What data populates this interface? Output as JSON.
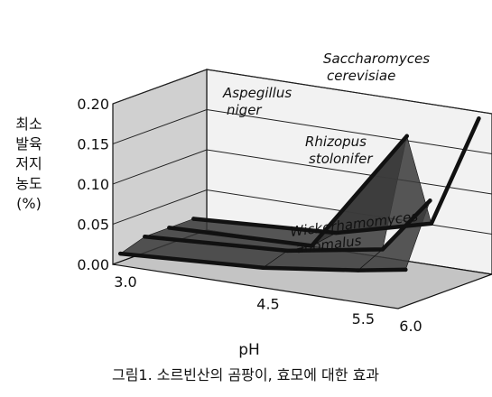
{
  "chart_data": {
    "type": "3d-surface",
    "title": "",
    "caption": "그림1. 소르빈산의 곰팡이, 효모에 대한 효과",
    "xlabel": "pH",
    "ylabel_lines": [
      "최소",
      "발육",
      "저지",
      "농도",
      "(%)"
    ],
    "x_ticks": [
      "3.0",
      "4.5",
      "5.5",
      "6.0"
    ],
    "y_ticks": [
      "0.20",
      "0.15",
      "0.10",
      "0.05",
      "0.00"
    ],
    "x": [
      3.0,
      4.5,
      5.5,
      6.0
    ],
    "ylim": [
      0,
      0.2
    ],
    "series": [
      {
        "name": "Wickerhamomyces anomalus",
        "label_lines": [
          "Wickerhamomyces",
          "anomalus"
        ],
        "values": [
          0.01,
          0.02,
          0.035,
          0.045
        ]
      },
      {
        "name": "Rhizopus stolonifer",
        "label_lines": [
          "Rhizopus",
          "stolonifer"
        ],
        "values": [
          0.02,
          0.03,
          0.05,
          0.12
        ]
      },
      {
        "name": "Aspegillus niger",
        "label_lines": [
          "Aspegillus",
          "niger"
        ],
        "values": [
          0.02,
          0.025,
          0.18,
          null
        ]
      },
      {
        "name": "Saccharomyces cerevisiae",
        "label_lines": [
          "Saccharomyces",
          "cerevisiae"
        ],
        "values": [
          0.02,
          0.03,
          0.06,
          0.2
        ]
      }
    ],
    "colors": {
      "surface": "#3a3a3a",
      "walls": "#d0d0d0",
      "floor": "#c4c4c4",
      "grid": "#222222"
    }
  }
}
